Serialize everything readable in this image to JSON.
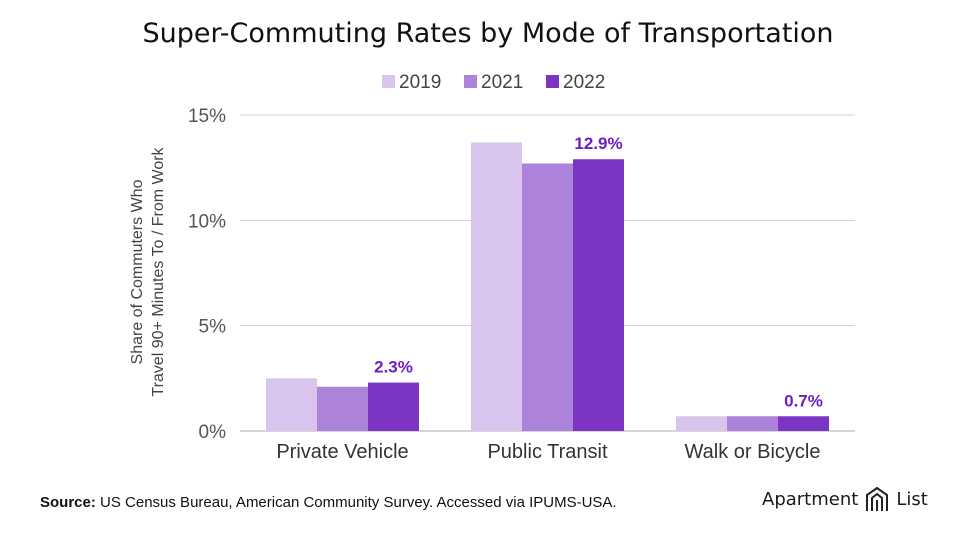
{
  "chart_data": {
    "type": "bar",
    "title": "Super-Commuting Rates by Mode of Transportation",
    "ylabel_line1": "Share of Commuters Who",
    "ylabel_line2": "Travel 90+ Minutes To / From Work",
    "xlabel": "",
    "ylim": [
      0,
      15
    ],
    "yticks": [
      "0%",
      "5%",
      "10%",
      "15%"
    ],
    "ytick_values": [
      0,
      5,
      10,
      15
    ],
    "categories": [
      "Private Vehicle",
      "Public Transit",
      "Walk or Bicycle"
    ],
    "series": [
      {
        "name": "2019",
        "color": "#d8c4ec",
        "values": [
          2.5,
          13.7,
          0.7
        ]
      },
      {
        "name": "2021",
        "color": "#ad82da",
        "values": [
          2.1,
          12.7,
          0.7
        ]
      },
      {
        "name": "2022",
        "color": "#7b35c2",
        "values": [
          2.3,
          12.9,
          0.7
        ]
      }
    ],
    "data_labels": [
      "2.3%",
      "12.9%",
      "0.7%"
    ],
    "data_label_color": "#6a1fc1",
    "legend_position": "top-center",
    "grid": true
  },
  "footer": {
    "source_label": "Source:",
    "source_text": " US Census Bureau, American Community Survey. Accessed via IPUMS-USA."
  },
  "brand": {
    "left": "Apartment",
    "right": "List",
    "logo_icon": "apartment-list-logo-icon"
  }
}
